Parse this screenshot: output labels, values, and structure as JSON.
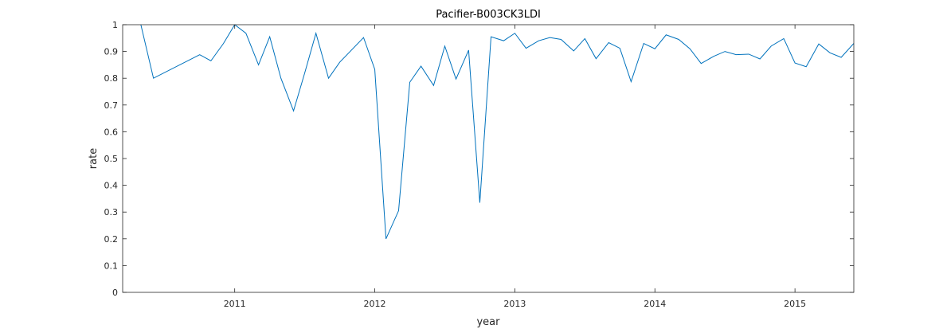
{
  "chart_data": {
    "type": "line",
    "title": "Pacifier-B003CK3LDI",
    "xlabel": "year",
    "ylabel": "rate",
    "xlim": [
      2010.2,
      2015.42
    ],
    "ylim": [
      0,
      1
    ],
    "x_ticks": [
      2011,
      2012,
      2013,
      2014,
      2015
    ],
    "x_tick_labels": [
      "2011",
      "2012",
      "2013",
      "2014",
      "2015"
    ],
    "y_ticks": [
      0,
      0.1,
      0.2,
      0.3,
      0.4,
      0.5,
      0.6,
      0.7,
      0.8,
      0.9,
      1
    ],
    "y_tick_labels": [
      "0",
      "0.1",
      "0.2",
      "0.3",
      "0.4",
      "0.5",
      "0.6",
      "0.7",
      "0.8",
      "0.9",
      "1"
    ],
    "grid": false,
    "box": true,
    "line_color": "#0072bd",
    "series": [
      {
        "x": [
          2010.33,
          2010.42,
          2010.75,
          2010.83,
          2010.92,
          2011.0,
          2011.08,
          2011.17,
          2011.25,
          2011.33,
          2011.42,
          2011.5,
          2011.58,
          2011.67,
          2011.75,
          2011.92,
          2012.0,
          2012.08,
          2012.17,
          2012.25,
          2012.33,
          2012.42,
          2012.5,
          2012.58,
          2012.67,
          2012.75,
          2012.83,
          2012.92,
          2013.0,
          2013.08,
          2013.17,
          2013.25,
          2013.33,
          2013.42,
          2013.5,
          2013.58,
          2013.67,
          2013.75,
          2013.83,
          2013.92,
          2014.0,
          2014.08,
          2014.17,
          2014.25,
          2014.33,
          2014.42,
          2014.5,
          2014.58,
          2014.67,
          2014.75,
          2014.83,
          2014.92,
          2015.0,
          2015.08,
          2015.17,
          2015.25,
          2015.33,
          2015.42
        ],
        "y": [
          1.0,
          0.8,
          0.888,
          0.865,
          0.93,
          1.0,
          0.968,
          0.85,
          0.955,
          0.8,
          0.678,
          0.82,
          0.968,
          0.8,
          0.86,
          0.952,
          0.833,
          0.2,
          0.305,
          0.785,
          0.845,
          0.773,
          0.92,
          0.797,
          0.905,
          0.335,
          0.955,
          0.94,
          0.968,
          0.912,
          0.94,
          0.952,
          0.945,
          0.902,
          0.948,
          0.873,
          0.933,
          0.912,
          0.787,
          0.93,
          0.91,
          0.962,
          0.945,
          0.91,
          0.855,
          0.882,
          0.9,
          0.888,
          0.89,
          0.872,
          0.92,
          0.948,
          0.857,
          0.843,
          0.928,
          0.895,
          0.878,
          0.93
        ]
      }
    ]
  }
}
